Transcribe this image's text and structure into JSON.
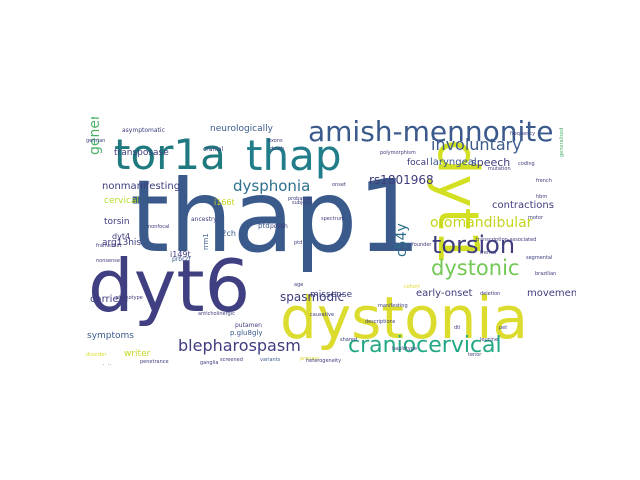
{
  "word_cloud": {
    "words": [
      {
        "text": "thap1",
        "color": "#3b5a8c",
        "weight": 100
      },
      {
        "text": "dyt6",
        "color": "#3f3f82",
        "weight": 86
      },
      {
        "text": "dystonia",
        "color": "#dcdc2e",
        "weight": 72
      },
      {
        "text": "dyt1",
        "color": "#d2e021",
        "weight": 55
      },
      {
        "text": "tor1a",
        "color": "#1e7a7e",
        "weight": 50
      },
      {
        "text": "thap",
        "color": "#217d8a",
        "weight": 46
      },
      {
        "text": "amish-mennonite",
        "color": "#3b5a8c",
        "weight": 40
      },
      {
        "text": "craniocervical",
        "color": "#22a884",
        "weight": 30
      },
      {
        "text": "torsion",
        "color": "#3e3d7e",
        "weight": 30
      },
      {
        "text": "dystonic",
        "color": "#74c856",
        "weight": 28
      },
      {
        "text": "blepharospasm",
        "color": "#3e3d7e",
        "weight": 24
      },
      {
        "text": "generalized",
        "color": "#4db06a",
        "weight": 20
      },
      {
        "text": "involuntary",
        "color": "#3b5a8c",
        "weight": 18
      },
      {
        "text": "oromandibular",
        "color": "#c5d51f",
        "weight": 16
      },
      {
        "text": "dysphonia",
        "color": "#2e6f8e",
        "weight": 16
      },
      {
        "text": "c54y",
        "color": "#2e6f8e",
        "weight": 14
      },
      {
        "text": "rs1801968",
        "color": "#3e3d7e",
        "weight": 12
      },
      {
        "text": "spasmodic",
        "color": "#3e3d7e",
        "weight": 12
      },
      {
        "text": "speech",
        "color": "#3e3d7e",
        "weight": 12
      },
      {
        "text": "laryngeal",
        "color": "#3b5a8c",
        "weight": 11
      },
      {
        "text": "early-onset",
        "color": "#3e3d7e",
        "weight": 11
      },
      {
        "text": "movement",
        "color": "#3e3d7e",
        "weight": 11
      },
      {
        "text": "contractions",
        "color": "#3e3d7e",
        "weight": 11
      },
      {
        "text": "carriers",
        "color": "#3e3d7e",
        "weight": 11
      },
      {
        "text": "neurologically",
        "color": "#3b5a8c",
        "weight": 10
      },
      {
        "text": "nonmanifesting",
        "color": "#3e3d7e",
        "weight": 10
      },
      {
        "text": "transposase",
        "color": "#3e3d7e",
        "weight": 10
      },
      {
        "text": "torsin",
        "color": "#3e3d7e",
        "weight": 10
      },
      {
        "text": "arg13his",
        "color": "#3e3d7e",
        "weight": 10
      },
      {
        "text": "cervical",
        "color": "#b5de2b",
        "weight": 10
      },
      {
        "text": "missense",
        "color": "#3e3d7e",
        "weight": 10
      },
      {
        "text": "writer",
        "color": "#c5d51f",
        "weight": 10
      },
      {
        "text": "symptoms",
        "color": "#3b5a8c",
        "weight": 10
      },
      {
        "text": "focal",
        "color": "#3e3d7e",
        "weight": 10
      },
      {
        "text": "i149t",
        "color": "#3e3d7e",
        "weight": 10
      },
      {
        "text": "c2ch",
        "color": "#3b5a8c",
        "weight": 9
      },
      {
        "text": "dyt4",
        "color": "#3e3d7e",
        "weight": 9
      },
      {
        "text": "i166t",
        "color": "#c5d51f",
        "weight": 9
      },
      {
        "text": "p.glu8gly",
        "color": "#3b5a8c",
        "weight": 8
      },
      {
        "text": "prbr2f",
        "color": "#3b5a8c",
        "weight": 8
      },
      {
        "text": "ancestry",
        "color": "#3e3d7e",
        "weight": 8
      },
      {
        "text": "rrm1",
        "color": "#3b5a8c",
        "weight": 8
      },
      {
        "text": "ptd",
        "color": "#3b5a8c",
        "weight": 8
      },
      {
        "text": "cranial",
        "color": "#3e3d7e",
        "weight": 8
      },
      {
        "text": "asymptomatic",
        "color": "#3e3d7e",
        "weight": 7
      },
      {
        "text": "putamen",
        "color": "#3e3d7e",
        "weight": 7
      },
      {
        "text": "penetrance",
        "color": "#3e3d7e",
        "weight": 7
      },
      {
        "text": "screened",
        "color": "#3e3d7e",
        "weight": 7
      },
      {
        "text": "variants",
        "color": "#3b5a8c",
        "weight": 7
      },
      {
        "text": "primary",
        "color": "#dcdc2e",
        "weight": 7
      },
      {
        "text": "causative",
        "color": "#3e3d7e",
        "weight": 7
      },
      {
        "text": "descriptions",
        "color": "#3e3d7e",
        "weight": 7
      },
      {
        "text": "manifesting",
        "color": "#3e3d7e",
        "weight": 7
      },
      {
        "text": "polish",
        "color": "#3e3d7e",
        "weight": 7
      },
      {
        "text": "subjects",
        "color": "#3e3d7e",
        "weight": 6
      },
      {
        "text": "nonfocal",
        "color": "#3e3d7e",
        "weight": 6
      },
      {
        "text": "nonsense",
        "color": "#3e3d7e",
        "weight": 6
      },
      {
        "text": "frameshift",
        "color": "#3e3d7e",
        "weight": 6
      },
      {
        "text": "german",
        "color": "#3e3d7e",
        "weight": 6
      },
      {
        "text": "motor",
        "color": "#3e3d7e",
        "weight": 6
      },
      {
        "text": "generalised",
        "color": "#4db06a",
        "weight": 6
      },
      {
        "text": "coding",
        "color": "#3e3d7e",
        "weight": 6
      },
      {
        "text": "segmental",
        "color": "#3e3d7e",
        "weight": 6
      },
      {
        "text": "brazilian",
        "color": "#3e3d7e",
        "weight": 6
      },
      {
        "text": "tremor",
        "color": "#3e3d7e",
        "weight": 6
      },
      {
        "text": "families",
        "color": "#3e3d7e",
        "weight": 6
      },
      {
        "text": "spectrum",
        "color": "#3e3d7e",
        "weight": 6
      },
      {
        "text": "ptd",
        "color": "#3e3d7e",
        "weight": 5
      },
      {
        "text": "age",
        "color": "#3e3d7e",
        "weight": 5
      },
      {
        "text": "idiopathic",
        "color": "#3b5a8c",
        "weight": 5
      },
      {
        "text": "transcription-associated",
        "color": "#3e3d7e",
        "weight": 5
      },
      {
        "text": "dti",
        "color": "#3e3d7e",
        "weight": 5
      },
      {
        "text": "pet",
        "color": "#3e3d7e",
        "weight": 5
      },
      {
        "text": "ganglia",
        "color": "#3e3d7e",
        "weight": 5
      },
      {
        "text": "disorder",
        "color": "#dcdc2e",
        "weight": 5
      },
      {
        "text": "cohort",
        "color": "#dcdc2e",
        "weight": 5
      },
      {
        "text": "leucine",
        "color": "#3e3d7e",
        "weight": 5
      },
      {
        "text": "anticholinergic",
        "color": "#3e3d7e",
        "weight": 5
      },
      {
        "text": "phenotype",
        "color": "#3e3d7e",
        "weight": 5
      },
      {
        "text": "hbm",
        "color": "#3e3d7e",
        "weight": 5
      },
      {
        "text": "shared",
        "color": "#3e3d7e",
        "weight": 5
      },
      {
        "text": "heterogeneity",
        "color": "#3e3d7e",
        "weight": 5
      },
      {
        "text": "haplotype",
        "color": "#3e3d7e",
        "weight": 5
      },
      {
        "text": "probands",
        "color": "#3e3d7e",
        "weight": 5
      },
      {
        "text": "tenor",
        "color": "#3e3d7e",
        "weight": 5
      },
      {
        "text": "deletion",
        "color": "#3e3d7e",
        "weight": 5
      },
      {
        "text": "exons",
        "color": "#3e3d7e",
        "weight": 5
      },
      {
        "text": "polymorphism",
        "color": "#3e3d7e",
        "weight": 5
      },
      {
        "text": "frequency",
        "color": "#3e3d7e",
        "weight": 5
      },
      {
        "text": "founder",
        "color": "#3e3d7e",
        "weight": 5
      },
      {
        "text": "onset",
        "color": "#3e3d7e",
        "weight": 5
      },
      {
        "text": "french",
        "color": "#3e3d7e",
        "weight": 5
      },
      {
        "text": "dutch",
        "color": "#3e3d7e",
        "weight": 5
      },
      {
        "text": "presentation",
        "color": "#3e3d7e",
        "weight": 5
      },
      {
        "text": "mutation",
        "color": "#3e3d7e",
        "weight": 5
      }
    ]
  }
}
